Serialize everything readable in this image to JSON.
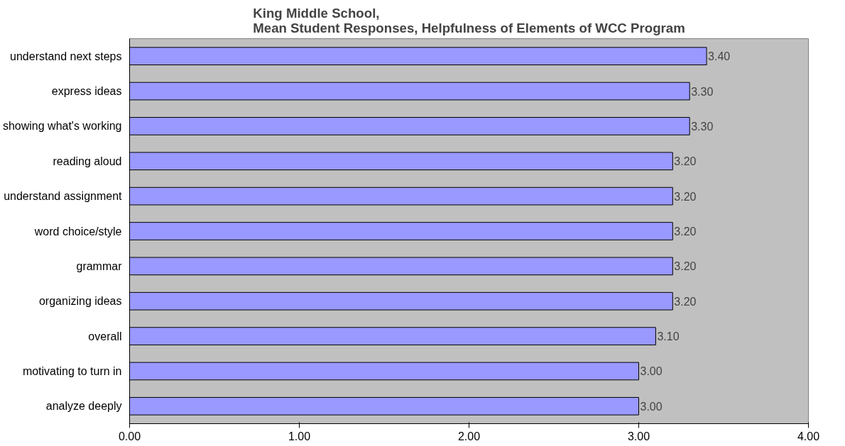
{
  "chart_data": {
    "type": "bar",
    "orientation": "horizontal",
    "title": "King Middle School,\nMean Student Responses, Helpfulness of Elements of WCC Program",
    "categories": [
      "understand next steps",
      "express ideas",
      "showing what's working",
      "reading aloud",
      "understand assignment",
      "word choice/style",
      "grammar",
      "organizing ideas",
      "overall",
      "motivating to turn in",
      "analyze deeply"
    ],
    "values": [
      3.4,
      3.3,
      3.3,
      3.2,
      3.2,
      3.2,
      3.2,
      3.2,
      3.1,
      3.0,
      3.0
    ],
    "value_labels": [
      "3.40",
      "3.30",
      "3.30",
      "3.20",
      "3.20",
      "3.20",
      "3.20",
      "3.20",
      "3.10",
      "3.00",
      "3.00"
    ],
    "color": "#9999ff",
    "xlim": [
      0,
      4
    ],
    "xticks": [
      {
        "value": 0,
        "label": "0.00"
      },
      {
        "value": 1,
        "label": "1.00"
      },
      {
        "value": 2,
        "label": "2.00"
      },
      {
        "value": 3,
        "label": "3.00"
      },
      {
        "value": 4,
        "label": "4.00"
      }
    ],
    "grid": false
  }
}
